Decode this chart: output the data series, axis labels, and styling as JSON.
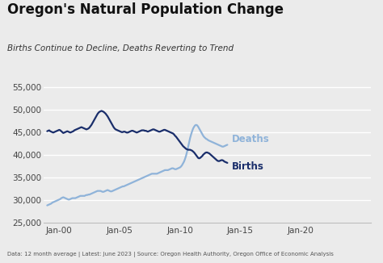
{
  "title": "Oregon's Natural Population Change",
  "subtitle": "Births Continue to Decline, Deaths Reverting to Trend",
  "footnote": "Data: 12 month average | Latest: June 2023 | Source: Oregon Health Authority, Oregon Office of Economic Analysis",
  "ylim": [
    25000,
    57000
  ],
  "yticks": [
    25000,
    30000,
    35000,
    40000,
    45000,
    50000,
    55000
  ],
  "background_color": "#ebebeb",
  "births_color": "#1a2e6b",
  "deaths_color": "#8fb3d9",
  "title_color": "#111111",
  "subtitle_color": "#333333",
  "footnote_color": "#555555",
  "grid_color": "#ffffff",
  "label_deaths": "Deaths",
  "label_births": "Births",
  "x_start_year": 1999,
  "x_end_year": 2024,
  "xtick_years": [
    2000,
    2005,
    2010,
    2015,
    2020
  ],
  "births": [
    45200,
    45300,
    45400,
    45200,
    45100,
    45000,
    44900,
    45000,
    45100,
    45200,
    45300,
    45400,
    45500,
    45400,
    45200,
    45000,
    44800,
    44900,
    45000,
    45100,
    45200,
    45100,
    45000,
    44900,
    45000,
    45100,
    45200,
    45400,
    45500,
    45600,
    45700,
    45800,
    45900,
    46000,
    46100,
    46000,
    45900,
    45800,
    45700,
    45600,
    45700,
    45800,
    46000,
    46300,
    46600,
    47000,
    47400,
    47800,
    48200,
    48600,
    49000,
    49300,
    49500,
    49600,
    49700,
    49600,
    49500,
    49300,
    49100,
    48800,
    48500,
    48100,
    47700,
    47300,
    46900,
    46500,
    46100,
    45800,
    45600,
    45500,
    45400,
    45300,
    45200,
    45100,
    45000,
    45000,
    45100,
    45100,
    45000,
    44900,
    44900,
    45000,
    45100,
    45200,
    45300,
    45300,
    45200,
    45100,
    45000,
    44900,
    45000,
    45100,
    45200,
    45300,
    45400,
    45400,
    45400,
    45300,
    45300,
    45200,
    45100,
    45200,
    45300,
    45400,
    45500,
    45600,
    45600,
    45500,
    45400,
    45300,
    45200,
    45100,
    45100,
    45200,
    45300,
    45400,
    45500,
    45500,
    45400,
    45300,
    45200,
    45100,
    45000,
    44900,
    44800,
    44700,
    44500,
    44200,
    44000,
    43700,
    43400,
    43100,
    42800,
    42500,
    42200,
    41900,
    41700,
    41500,
    41300,
    41200,
    41100,
    41100,
    41100,
    41000,
    40900,
    40700,
    40500,
    40200,
    39900,
    39600,
    39300,
    39200,
    39300,
    39500,
    39700,
    40000,
    40200,
    40400,
    40500,
    40500,
    40400,
    40300,
    40100,
    39900,
    39700,
    39500,
    39300,
    39100,
    38900,
    38700,
    38600,
    38600,
    38700,
    38800,
    38800,
    38700,
    38500,
    38400,
    38300,
    38200
  ],
  "deaths": [
    28800,
    28900,
    29000,
    29100,
    29200,
    29400,
    29500,
    29600,
    29700,
    29800,
    29900,
    30000,
    30100,
    30200,
    30400,
    30500,
    30600,
    30500,
    30400,
    30300,
    30200,
    30100,
    30100,
    30200,
    30300,
    30400,
    30400,
    30400,
    30400,
    30500,
    30600,
    30700,
    30800,
    30900,
    30900,
    30900,
    30900,
    30900,
    31000,
    31100,
    31100,
    31200,
    31200,
    31300,
    31400,
    31500,
    31600,
    31700,
    31800,
    31900,
    32000,
    32000,
    32000,
    32000,
    31900,
    31800,
    31800,
    31900,
    32000,
    32100,
    32200,
    32100,
    32000,
    31900,
    31900,
    32000,
    32100,
    32200,
    32300,
    32400,
    32500,
    32600,
    32700,
    32800,
    32900,
    33000,
    33000,
    33100,
    33200,
    33300,
    33400,
    33500,
    33600,
    33700,
    33800,
    33900,
    34000,
    34100,
    34200,
    34300,
    34400,
    34500,
    34600,
    34700,
    34800,
    34900,
    35000,
    35100,
    35200,
    35300,
    35400,
    35500,
    35600,
    35700,
    35800,
    35800,
    35800,
    35800,
    35800,
    35800,
    35900,
    36000,
    36100,
    36200,
    36300,
    36400,
    36500,
    36600,
    36600,
    36600,
    36600,
    36700,
    36800,
    36900,
    37000,
    37000,
    36900,
    36800,
    36800,
    36900,
    37000,
    37100,
    37200,
    37400,
    37700,
    38100,
    38500,
    39100,
    39800,
    40700,
    41700,
    42700,
    43700,
    44500,
    45200,
    45800,
    46200,
    46500,
    46600,
    46500,
    46200,
    45800,
    45400,
    45000,
    44600,
    44200,
    43900,
    43700,
    43500,
    43400,
    43200,
    43100,
    43000,
    42900,
    42800,
    42700,
    42600,
    42500,
    42400,
    42300,
    42200,
    42100,
    42000,
    41900,
    41800,
    41800,
    41900,
    42000,
    42100,
    42200
  ]
}
